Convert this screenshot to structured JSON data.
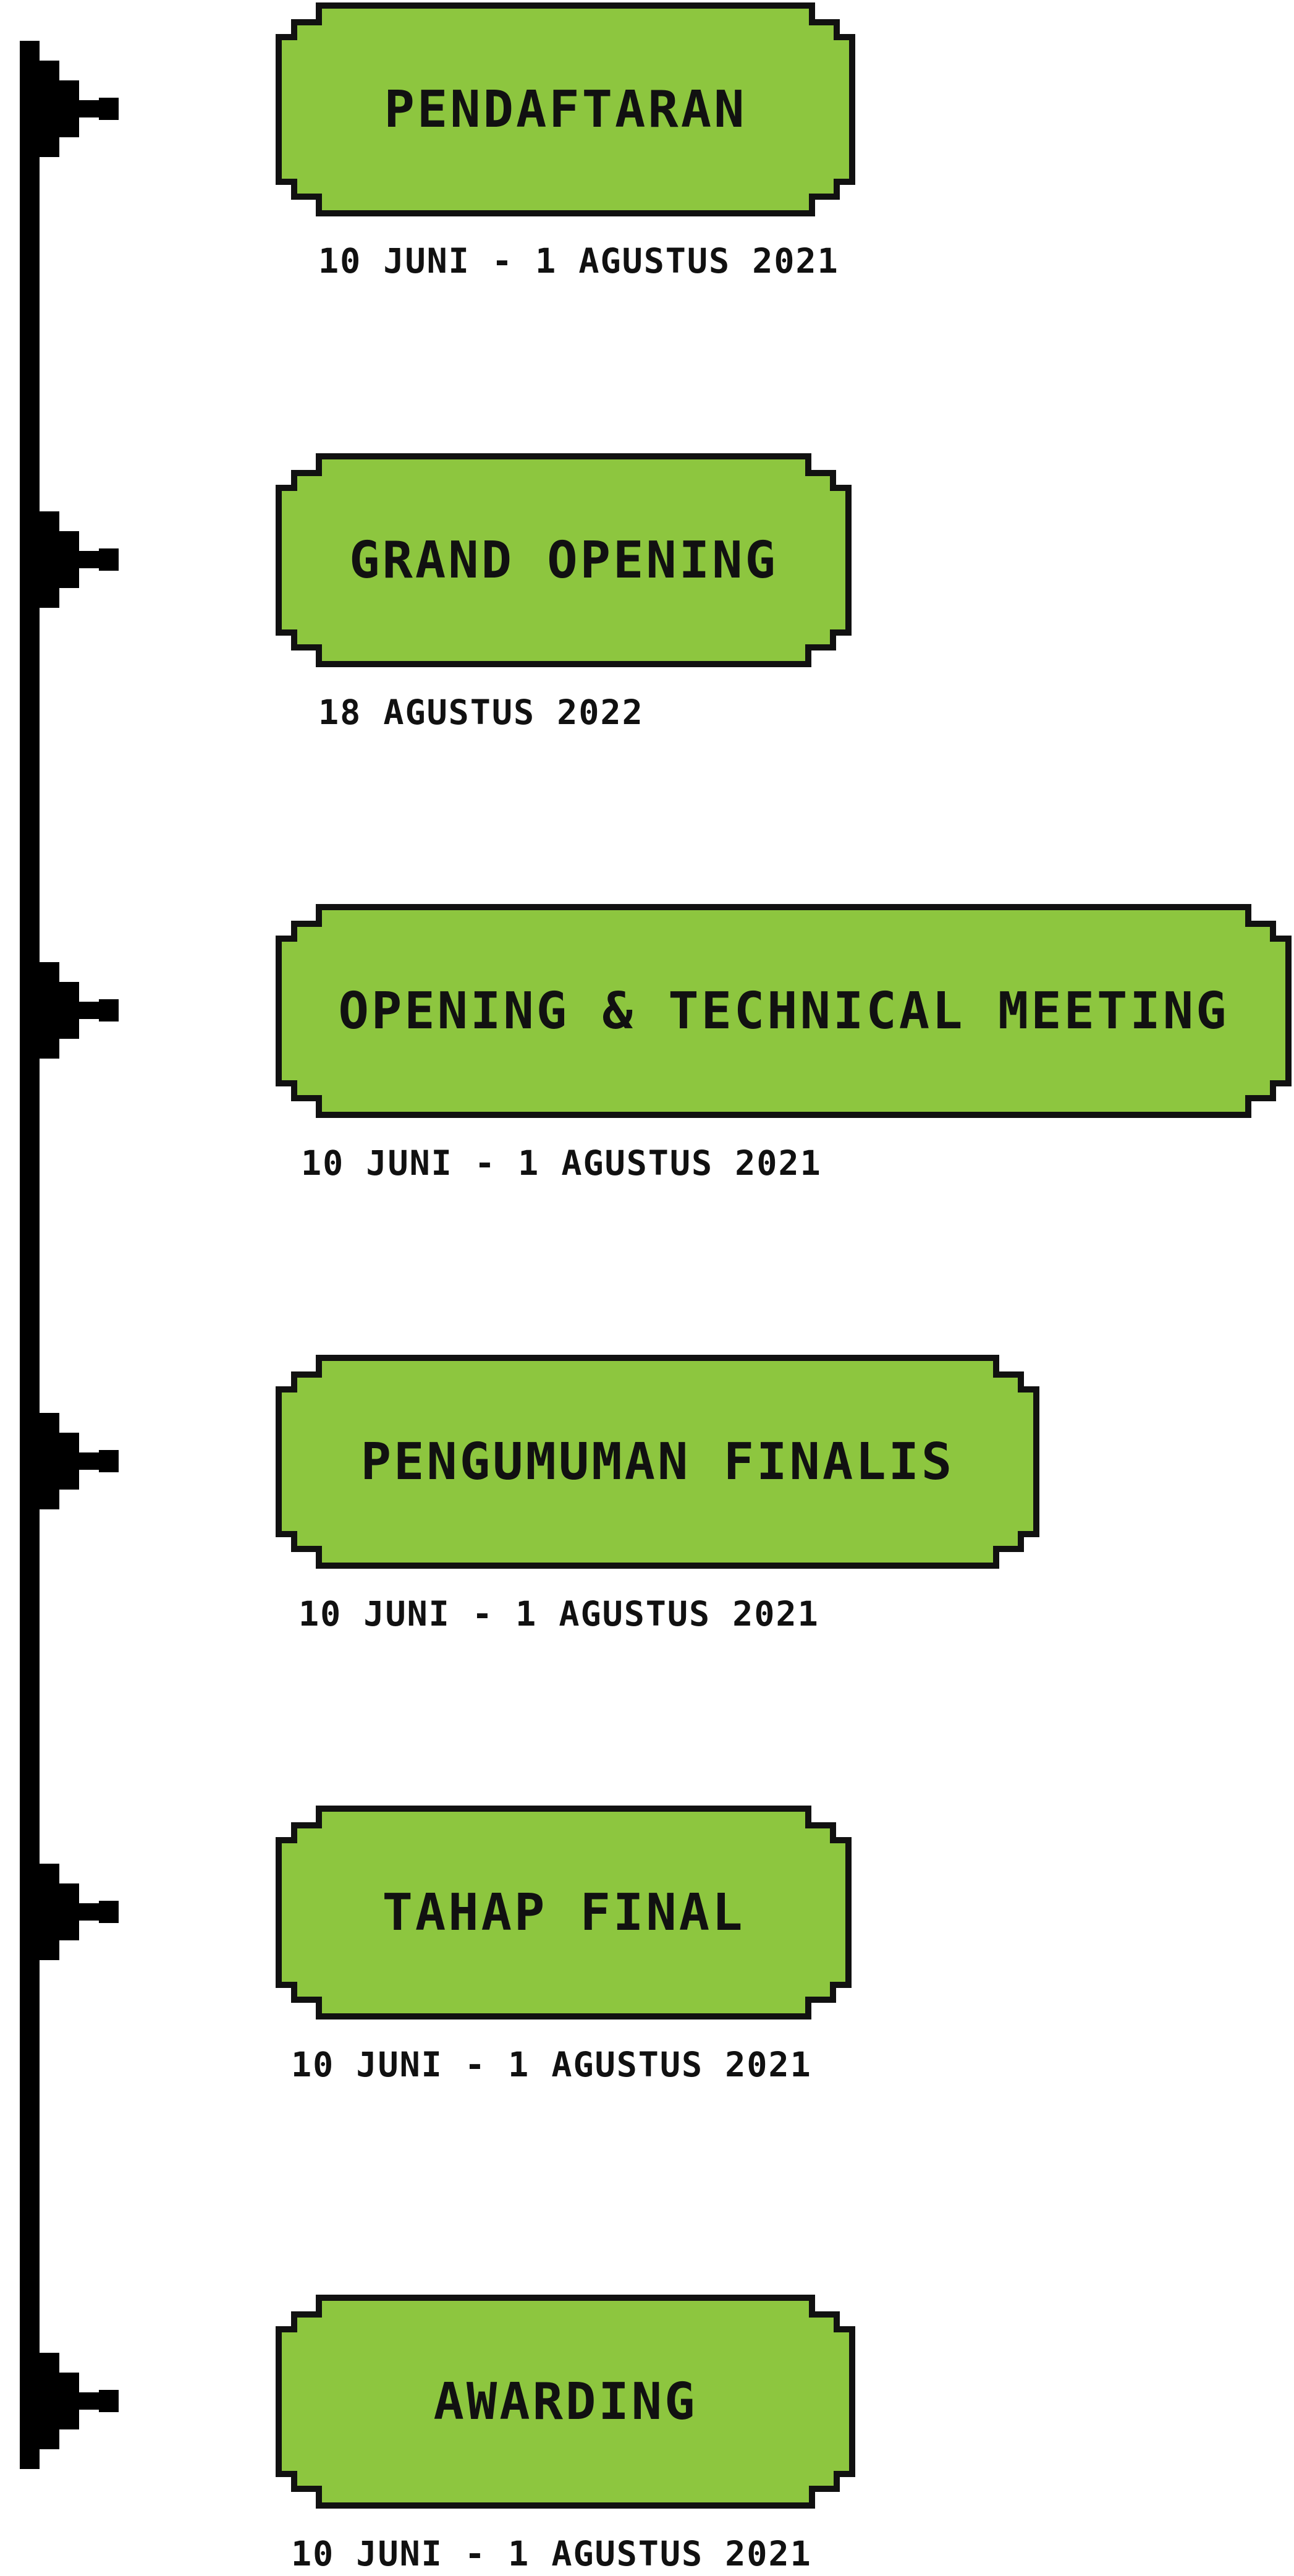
{
  "colors": {
    "box_fill": "#8DC63F",
    "outline": "#111111",
    "line": "#000000",
    "background": "#FFFFFF"
  },
  "icons": {
    "marker": "pixel-arrow-marker-icon"
  },
  "events": [
    {
      "title": "PENDAFTARAN",
      "date": "10 JUNI - 1 AGUSTUS 2021"
    },
    {
      "title": "GRAND OPENING",
      "date": "18 AGUSTUS 2022"
    },
    {
      "title": "OPENING & TECHNICAL MEETING",
      "date": "10 JUNI - 1 AGUSTUS 2021"
    },
    {
      "title": "PENGUMUMAN FINALIS",
      "date": "10 JUNI - 1 AGUSTUS 2021"
    },
    {
      "title": "TAHAP FINAL",
      "date": "10 JUNI - 1 AGUSTUS 2021"
    },
    {
      "title": "AWARDING",
      "date": "10 JUNI - 1 AGUSTUS 2021"
    }
  ]
}
